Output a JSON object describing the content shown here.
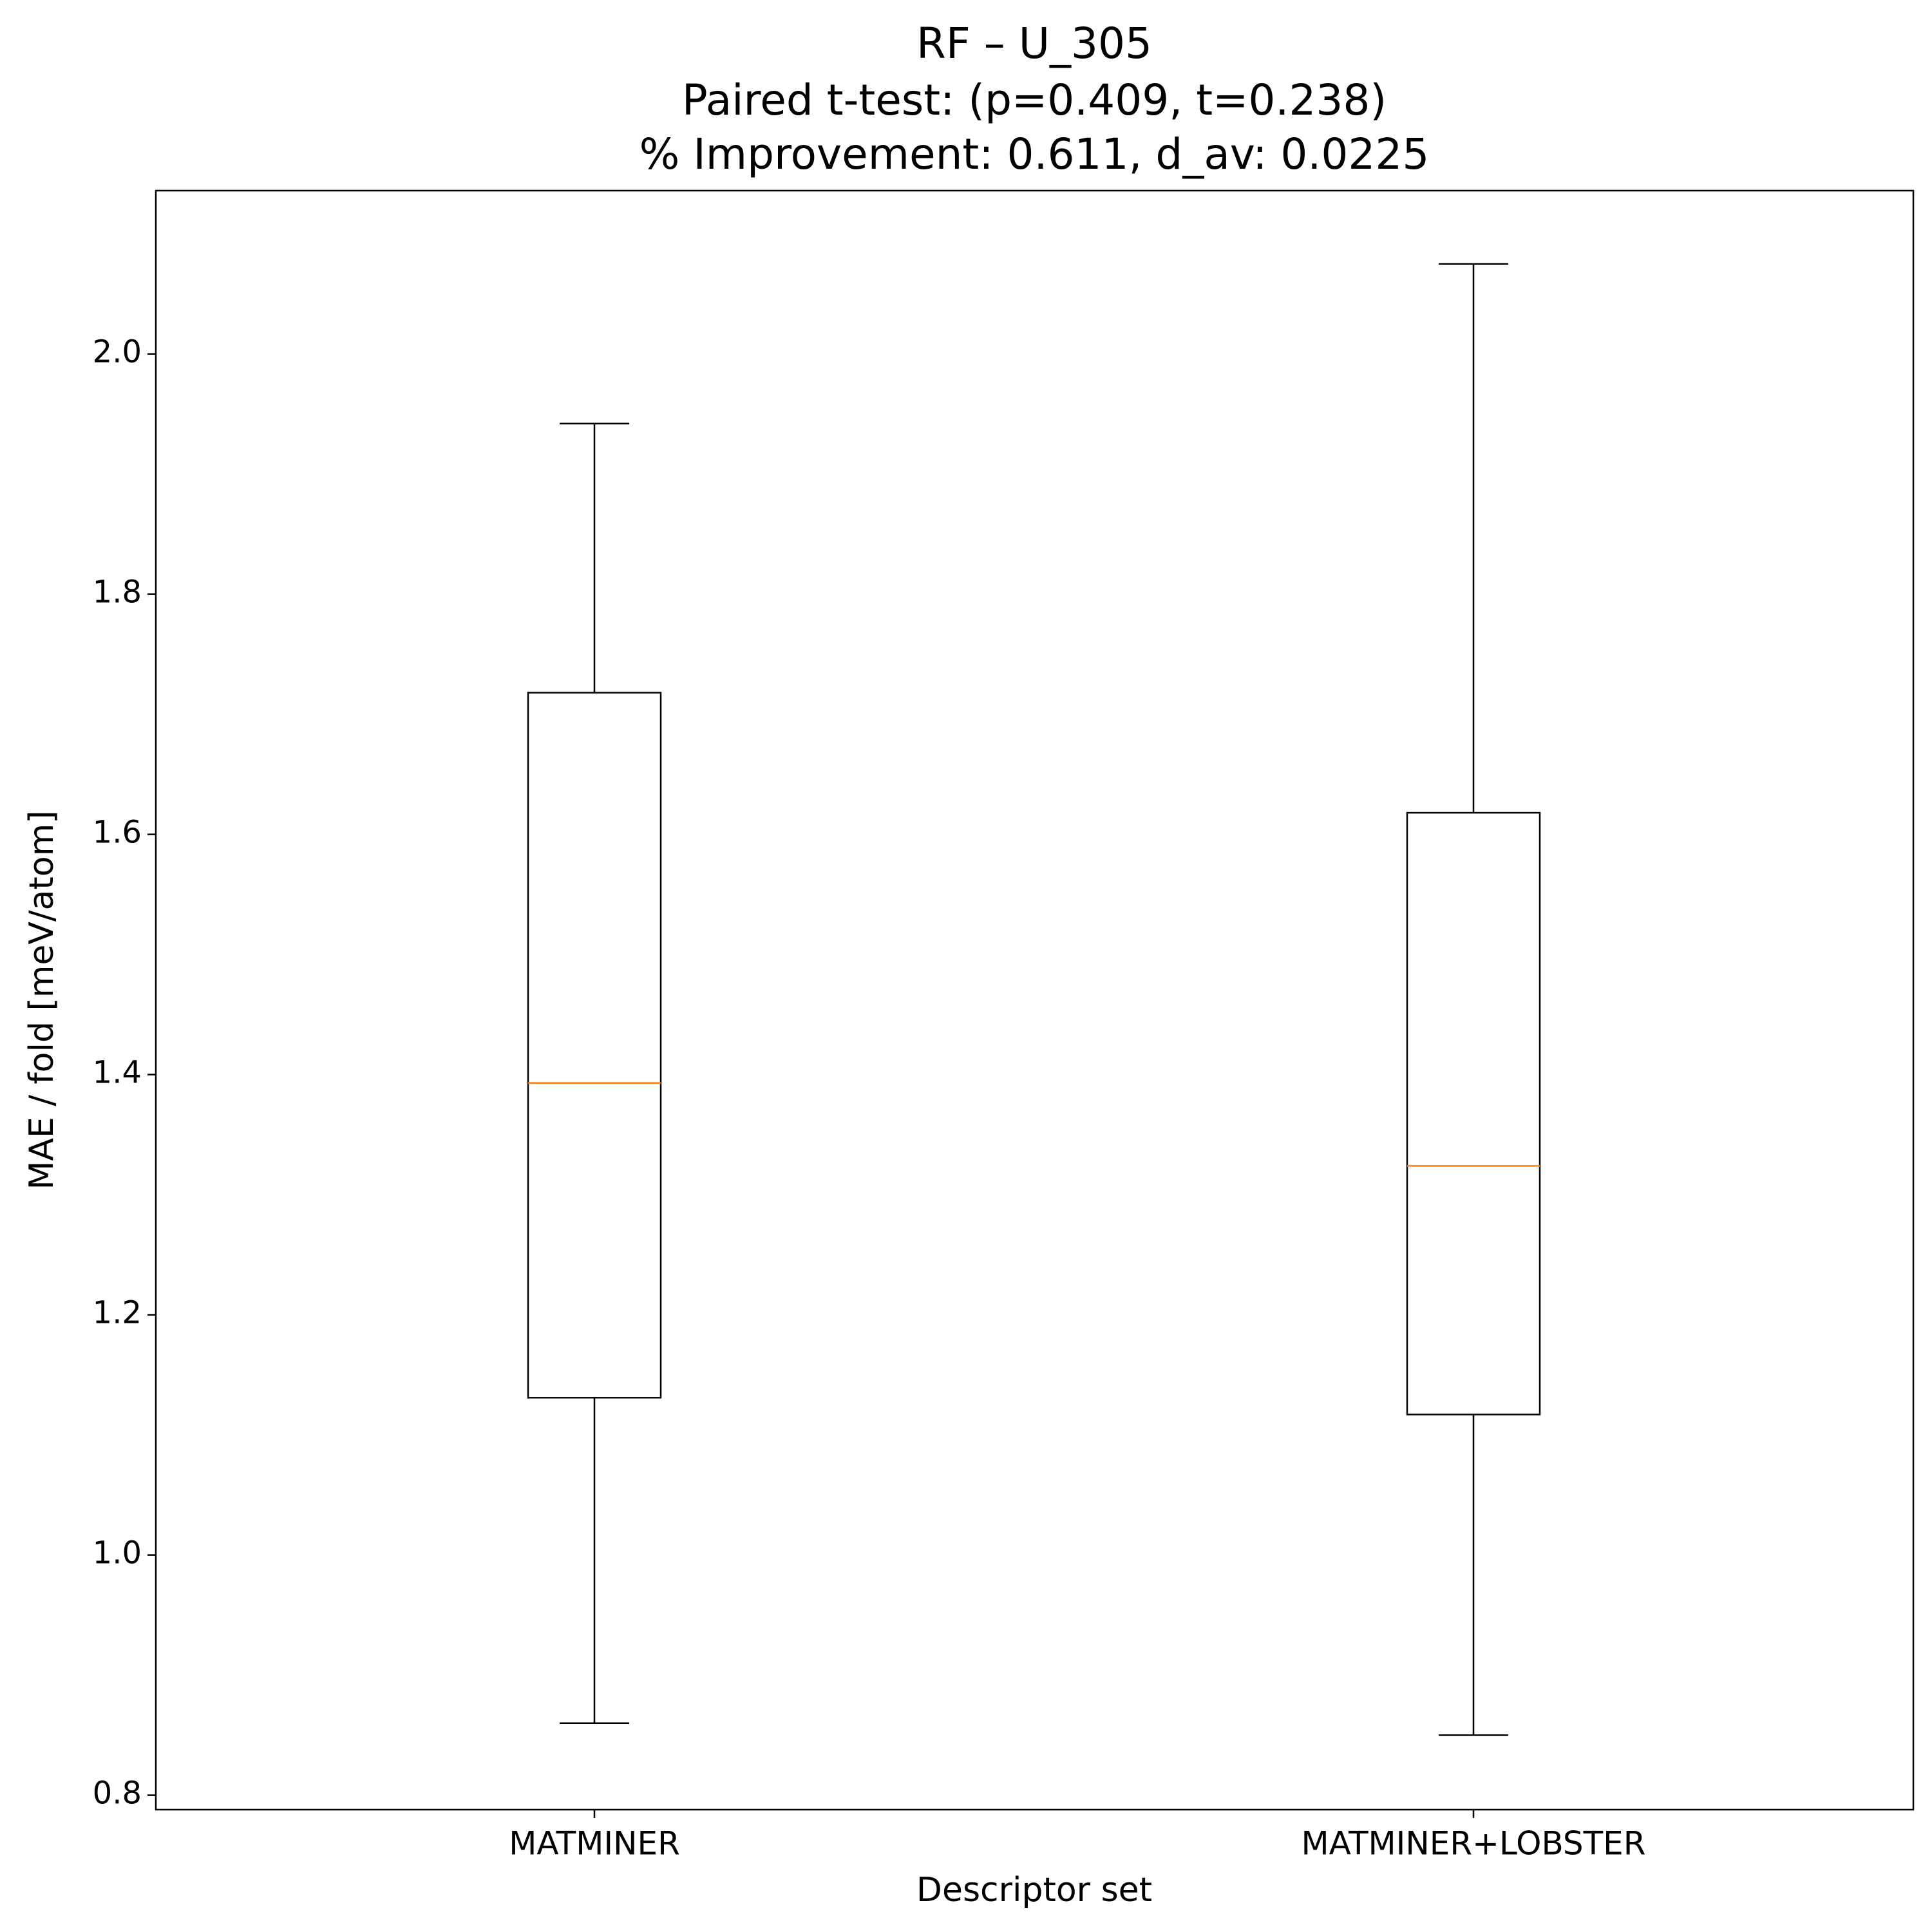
{
  "chart_data": {
    "type": "box",
    "title": [
      "RF – U_305",
      "Paired t-test: (p=0.409, t=0.238)",
      "% Improvement: 0.611, d_av: 0.0225"
    ],
    "xlabel": "Descriptor set",
    "ylabel": "MAE / fold [meV/atom]",
    "categories": [
      "MATMINER",
      "MATMINER+LOBSTER"
    ],
    "boxes": [
      {
        "whislo": 0.86,
        "q1": 1.131,
        "med": 1.393,
        "q3": 1.718,
        "whishi": 1.942
      },
      {
        "whislo": 0.85,
        "q1": 1.117,
        "med": 1.324,
        "q3": 1.618,
        "whishi": 2.075
      }
    ],
    "color": "#000000",
    "median_color": "#ff7f0e",
    "ylim": [
      0.788,
      2.136
    ],
    "yticks": [
      0.8,
      {
        "value": 1.0,
        "label": "1.0"
      },
      1.2,
      1.4,
      1.6,
      1.8,
      {
        "value": 2.0,
        "label": "2.0"
      }
    ],
    "grid": false
  }
}
